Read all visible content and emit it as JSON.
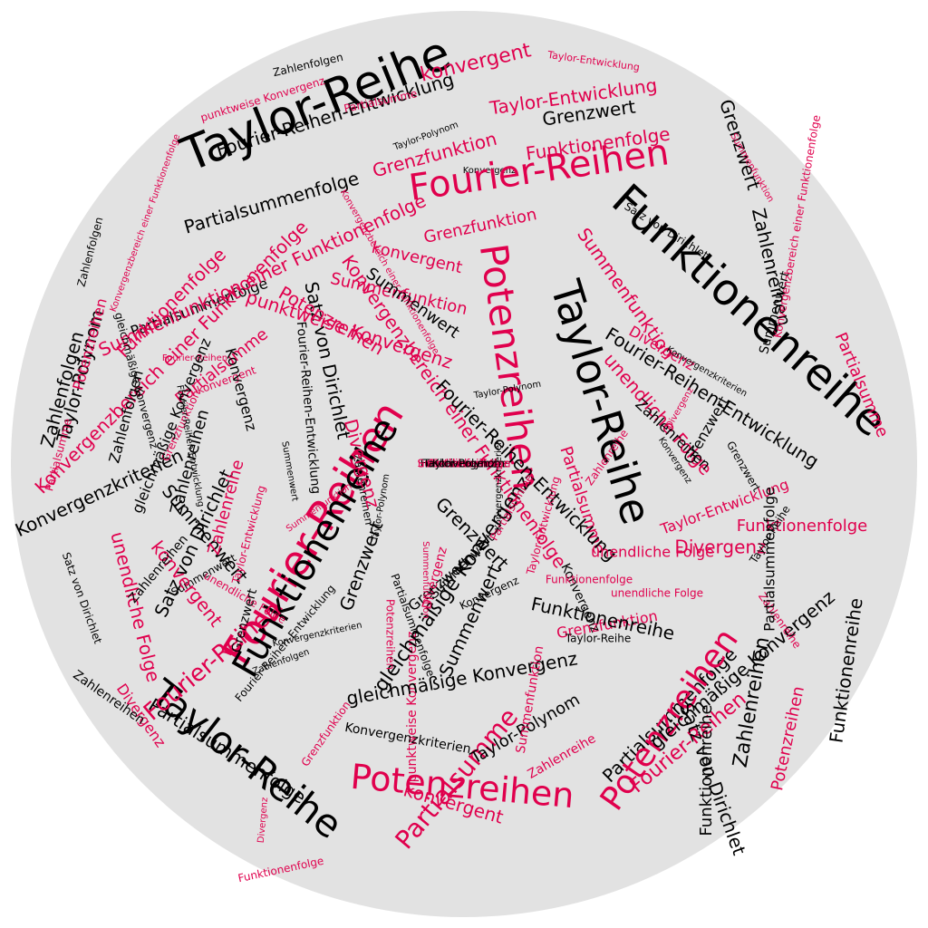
{
  "colors": {
    "background": "#ffffff",
    "disc": "#e2e2e2",
    "black": "#000000",
    "accent": "#e0004d"
  },
  "words": [
    {
      "text": "Taylor-Reihe",
      "color": "black"
    },
    {
      "text": "Fourier-Reihen-Entwicklung",
      "color": "black"
    },
    {
      "text": "Partialsummenfolge",
      "color": "black"
    },
    {
      "text": "Partialsumme",
      "color": "accent"
    },
    {
      "text": "konvergent",
      "color": "accent"
    },
    {
      "text": "Taylor-Entwicklung",
      "color": "accent"
    },
    {
      "text": "Taylor-Entwicklung",
      "color": "accent"
    },
    {
      "text": "Zahlenfolgen",
      "color": "black"
    },
    {
      "text": "punktweise Konvergenz",
      "color": "accent"
    },
    {
      "text": "Taylor-Polynom",
      "color": "black"
    },
    {
      "text": "Grenzfunktion",
      "color": "accent"
    },
    {
      "text": "Grenzwert",
      "color": "black"
    },
    {
      "text": "Konvergenz",
      "color": "black"
    },
    {
      "text": "Funktionenfolge",
      "color": "accent"
    },
    {
      "text": "Fourier-Reihen",
      "color": "accent"
    },
    {
      "text": "Partialsummenfolge",
      "color": "black"
    },
    {
      "text": "Summenfunktion einer Funktionenfolge",
      "color": "accent"
    },
    {
      "text": "Grenzfunktion",
      "color": "accent"
    },
    {
      "text": "konvergent",
      "color": "accent"
    },
    {
      "text": "Summenfunktion",
      "color": "accent"
    },
    {
      "text": "Satz von Dirichlet",
      "color": "black"
    },
    {
      "text": "Grenzwert",
      "color": "black"
    },
    {
      "text": "Summenfunktion",
      "color": "accent"
    },
    {
      "text": "Funktionenreihe",
      "color": "black"
    },
    {
      "text": "Satz von Dirichlet",
      "color": "black"
    },
    {
      "text": "Zahlenreihen",
      "color": "black"
    },
    {
      "text": "Potenzreihen",
      "color": "accent"
    },
    {
      "text": "Summenwert",
      "color": "black"
    },
    {
      "text": "Partialsumme",
      "color": "accent"
    },
    {
      "text": "Fourier-Reihen-Entwicklung",
      "color": "black"
    },
    {
      "text": "Funktionenfolge",
      "color": "accent"
    },
    {
      "text": "Summenfunktion",
      "color": "accent"
    },
    {
      "text": "Summenwert",
      "color": "black"
    },
    {
      "text": "Zahlenfolgen",
      "color": "black"
    },
    {
      "text": "Taylor-Polynom",
      "color": "black"
    },
    {
      "text": "Konvergenzbereich einer Funktionenfolge",
      "color": "accent"
    },
    {
      "text": "Partialsumme",
      "color": "accent"
    },
    {
      "text": "Divergenz",
      "color": "accent"
    },
    {
      "text": "Konvergenzkriterien",
      "color": "black"
    },
    {
      "text": "Zahlenfolgen",
      "color": "black"
    },
    {
      "text": "Fourier-Reihen",
      "color": "accent"
    },
    {
      "text": "Funktionenreihe",
      "color": "black"
    },
    {
      "text": "Konvergenzbereich einer Funktionenfolge",
      "color": "accent"
    },
    {
      "text": "Satz von Dirichlet",
      "color": "black"
    },
    {
      "text": "Taylor-Reihe",
      "color": "black"
    },
    {
      "text": "Potenzreihen",
      "color": "accent"
    },
    {
      "text": "punktweise Konvergenz",
      "color": "accent"
    },
    {
      "text": "Partialsumme",
      "color": "accent"
    },
    {
      "text": "unendliche Folge",
      "color": "accent"
    },
    {
      "text": "Zahlenreihen",
      "color": "black"
    },
    {
      "text": "Konvergenz",
      "color": "black"
    },
    {
      "text": "Grenzwert",
      "color": "black"
    },
    {
      "text": "Taylor-Entwicklung",
      "color": "accent"
    },
    {
      "text": "Funktionenfolge",
      "color": "accent"
    },
    {
      "text": "Divergenz",
      "color": "accent"
    },
    {
      "text": "Fourier-Reihen-Entwicklung",
      "color": "black"
    },
    {
      "text": "Zahlenreihen",
      "color": "black"
    },
    {
      "text": "Summenwert",
      "color": "black"
    },
    {
      "text": "Konvergenzkriterien",
      "color": "black"
    },
    {
      "text": "Zahlenreihe",
      "color": "accent"
    },
    {
      "text": "Taylor-Entwicklung",
      "color": "accent"
    },
    {
      "text": "Zahlenfolgen",
      "color": "black"
    },
    {
      "text": "Summenwert",
      "color": "black"
    },
    {
      "text": "konvergent",
      "color": "accent"
    },
    {
      "text": "unendliche Folge",
      "color": "accent"
    },
    {
      "text": "Satz von Dirichlet",
      "color": "black"
    },
    {
      "text": "Taylor-Reihe",
      "color": "black"
    },
    {
      "text": "Divergenz",
      "color": "accent"
    },
    {
      "text": "Partialsummenfolge",
      "color": "black"
    },
    {
      "text": "Divergenz",
      "color": "accent"
    },
    {
      "text": "Fourier-Reihen",
      "color": "accent"
    },
    {
      "text": "Partialsumme",
      "color": "accent"
    },
    {
      "text": "konvergent",
      "color": "accent"
    },
    {
      "text": "Potenzreihen",
      "color": "accent"
    },
    {
      "text": "punktweise Konvergenz",
      "color": "accent"
    },
    {
      "text": "Partialsummenfolge",
      "color": "black"
    },
    {
      "text": "gleichmäßige Konvergenz",
      "color": "black"
    },
    {
      "text": "Konvergenzkriterien",
      "color": "black"
    },
    {
      "text": "Taylor-Polynom",
      "color": "black"
    },
    {
      "text": "Zahlenreihe",
      "color": "accent"
    },
    {
      "text": "Potenzreihen",
      "color": "accent"
    },
    {
      "text": "Fourier-Reihen",
      "color": "accent"
    },
    {
      "text": "gleichmäßige Konvergenz",
      "color": "black"
    },
    {
      "text": "Funktionenreihe",
      "color": "black"
    },
    {
      "text": "Zahlenreihen",
      "color": "black"
    },
    {
      "text": "Funktionenreihe",
      "color": "black"
    },
    {
      "text": "Potenzreihen",
      "color": "accent"
    },
    {
      "text": "gleichmäßige Konvergenz",
      "color": "black"
    },
    {
      "text": "Grenzwert",
      "color": "black"
    },
    {
      "text": "Divergenz",
      "color": "accent"
    },
    {
      "text": "unendliche Folge",
      "color": "accent"
    },
    {
      "text": "Grenzfunktion",
      "color": "accent"
    },
    {
      "text": "Zahlenreihe",
      "color": "accent"
    },
    {
      "text": "Taylor-Reihe",
      "color": "black"
    },
    {
      "text": "Grenzwert",
      "color": "black"
    },
    {
      "text": "Summenwert",
      "color": "black"
    },
    {
      "text": "Zahlenreihen",
      "color": "black"
    },
    {
      "text": "Funktionenreihe",
      "color": "black"
    },
    {
      "text": "Zahlenreihen",
      "color": "black"
    },
    {
      "text": "Partialsumme",
      "color": "accent"
    },
    {
      "text": "Summenfunktion",
      "color": "accent"
    },
    {
      "text": "unendliche Folge",
      "color": "accent"
    },
    {
      "text": "Grenzwert",
      "color": "black"
    },
    {
      "text": "Konvergenz",
      "color": "black"
    },
    {
      "text": "Grenzwert",
      "color": "black"
    },
    {
      "text": "Taylor-Reihe",
      "color": "black"
    },
    {
      "text": "Summenwert",
      "color": "black"
    },
    {
      "text": "Partialsummenfolge",
      "color": "black"
    },
    {
      "text": "Konvergenz",
      "color": "black"
    },
    {
      "text": "Taylor-Entwicklung",
      "color": "accent"
    },
    {
      "text": "Funktionenfolge",
      "color": "accent"
    },
    {
      "text": "unendliche Folge",
      "color": "accent"
    },
    {
      "text": "Zahlenreihe",
      "color": "accent"
    },
    {
      "text": "Divergenz",
      "color": "accent"
    },
    {
      "text": "Grenzfunktion",
      "color": "accent"
    },
    {
      "text": "Taylor-Polynom",
      "color": "black"
    },
    {
      "text": "Potenzreihen",
      "color": "accent"
    },
    {
      "text": "Fourier-Reihen",
      "color": "accent"
    },
    {
      "text": "Partialsumme",
      "color": "accent"
    },
    {
      "text": "konvergent",
      "color": "accent"
    },
    {
      "text": "Summenwert",
      "color": "black"
    },
    {
      "text": "Zahlenreihen",
      "color": "black"
    },
    {
      "text": "Konvergenzkriterien",
      "color": "black"
    },
    {
      "text": "Satz von Dirichlet",
      "color": "black"
    },
    {
      "text": "Funktionenfolge",
      "color": "accent"
    },
    {
      "text": "Grenzfunktion",
      "color": "accent"
    },
    {
      "text": "Summenfunktion",
      "color": "accent"
    },
    {
      "text": "Divergenz",
      "color": "accent"
    },
    {
      "text": "Potenzreihen",
      "color": "accent"
    },
    {
      "text": "Fourier-Reihen-Entwicklung",
      "color": "black"
    },
    {
      "text": "Taylor-Polynom",
      "color": "black"
    },
    {
      "text": "Konvergenzkriterien",
      "color": "black"
    },
    {
      "text": "Summenfunktion",
      "color": "accent"
    },
    {
      "text": "Konvergenz",
      "color": "black"
    },
    {
      "text": "Grenzwert",
      "color": "black"
    },
    {
      "text": "Zahlenfolgen",
      "color": "black"
    },
    {
      "text": "Partialsummenfolge",
      "color": "black"
    },
    {
      "text": "Konvergenzbereich einer Funktionenfolge",
      "color": "accent"
    },
    {
      "text": "Konvergenzbereich einer Funktionenfolge",
      "color": "accent"
    },
    {
      "text": "Konvergenzbereich einer Funktionenfolge",
      "color": "accent"
    },
    {
      "text": "gleichmäßige Konvergenz",
      "color": "black"
    },
    {
      "text": "gleichmäßige Konvergenz",
      "color": "black"
    },
    {
      "text": "Fourier-Reihen-Entwicklung",
      "color": "black"
    },
    {
      "text": "Fourier-Reihen-Entwicklung",
      "color": "black"
    },
    {
      "text": "Funktionenreihe",
      "color": "black"
    },
    {
      "text": "unendliche Folge",
      "color": "accent"
    },
    {
      "text": "Summenfunktion",
      "color": "accent"
    },
    {
      "text": "Potenzreihen",
      "color": "accent"
    },
    {
      "text": "Zahlenreihe",
      "color": "accent"
    },
    {
      "text": "Partialsumme",
      "color": "accent"
    },
    {
      "text": "Taylor-Polynom",
      "color": "black"
    },
    {
      "text": "Konvergenz",
      "color": "black"
    }
  ]
}
